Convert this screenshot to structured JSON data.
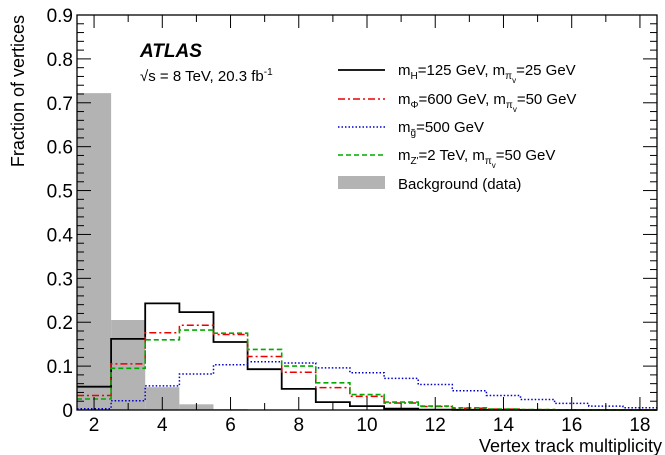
{
  "chart_data": {
    "type": "histogram",
    "experiment": "ATLAS",
    "energy_label": "√s = 8 TeV, 20.3 fb",
    "energy_label_sup": "-1",
    "xlabel": "Vertex track multiplicity",
    "ylabel": "Fraction of vertices",
    "xlim": [
      1.5,
      18.5
    ],
    "ylim": [
      0,
      0.9
    ],
    "x_ticks": [
      2,
      4,
      6,
      8,
      10,
      12,
      14,
      16,
      18
    ],
    "y_ticks": [
      0,
      0.1,
      0.2,
      0.3,
      0.4,
      0.5,
      0.6,
      0.7,
      0.8,
      0.9
    ],
    "y_tick_labels": [
      "0",
      "0.1",
      "0.2",
      "0.3",
      "0.4",
      "0.5",
      "0.6",
      "0.7",
      "0.8",
      "0.9"
    ],
    "bin_centers": [
      2,
      3,
      4,
      5,
      6,
      7,
      8,
      9,
      10,
      11,
      12,
      13,
      14,
      15,
      16,
      17,
      18
    ],
    "series": [
      {
        "name": "m_H=125 GeV, m_πv=25 GeV",
        "style": "solid",
        "color": "#000000",
        "legend_parts": [
          [
            "m",
            ""
          ],
          [
            "H",
            "sub"
          ],
          [
            "=125 GeV, m",
            ""
          ],
          [
            "π",
            "sub"
          ],
          [
            "v",
            "subsub"
          ],
          [
            "=25 GeV",
            ""
          ]
        ],
        "values": [
          0.053,
          0.162,
          0.243,
          0.223,
          0.155,
          0.093,
          0.048,
          0.018,
          0.009,
          0.003,
          0.001,
          0.0005,
          0.0002,
          0.0001,
          0.0,
          0.0,
          0.0
        ]
      },
      {
        "name": "m_Φ=600 GeV, m_πv=50 GeV",
        "style": "dashdot",
        "color": "#ee0000",
        "legend_parts": [
          [
            "m",
            ""
          ],
          [
            "Φ",
            "sub"
          ],
          [
            "=600 GeV, m",
            ""
          ],
          [
            "π",
            "sub"
          ],
          [
            "v",
            "subsub"
          ],
          [
            "=50 GeV",
            ""
          ]
        ],
        "values": [
          0.033,
          0.105,
          0.176,
          0.193,
          0.172,
          0.122,
          0.086,
          0.051,
          0.031,
          0.016,
          0.008,
          0.004,
          0.002,
          0.001,
          0.0005,
          0.0002,
          0.0001
        ]
      },
      {
        "name": "m_g̃=500 GeV",
        "style": "dotted",
        "color": "#0000cc",
        "legend_parts": [
          [
            "m",
            ""
          ],
          [
            "g̃",
            "sub"
          ],
          [
            "=500 GeV",
            ""
          ]
        ],
        "values": [
          0.003,
          0.021,
          0.055,
          0.082,
          0.103,
          0.11,
          0.107,
          0.096,
          0.085,
          0.072,
          0.058,
          0.044,
          0.033,
          0.024,
          0.015,
          0.009,
          0.005
        ]
      },
      {
        "name": "m_Z'=2 TeV, m_πv=50 GeV",
        "style": "dashed",
        "color": "#00aa00",
        "legend_parts": [
          [
            "m",
            ""
          ],
          [
            "Z'",
            "sub"
          ],
          [
            "=2 TeV, m",
            ""
          ],
          [
            "π",
            "sub"
          ],
          [
            "v",
            "subsub"
          ],
          [
            "=50 GeV",
            ""
          ]
        ],
        "values": [
          0.025,
          0.095,
          0.16,
          0.182,
          0.175,
          0.138,
          0.1,
          0.062,
          0.035,
          0.018,
          0.009,
          0.005,
          0.002,
          0.001,
          0.0005,
          0.0002,
          0.0001
        ]
      }
    ],
    "background": {
      "name": "Background (data)",
      "color": "#b3b3b3",
      "values": [
        0.722,
        0.205,
        0.052,
        0.013,
        0.002,
        0.0,
        0.0,
        0.0,
        0.0,
        0.0,
        0.0,
        0.0,
        0.0,
        0.0,
        0.0,
        0.0,
        0.0
      ]
    }
  }
}
